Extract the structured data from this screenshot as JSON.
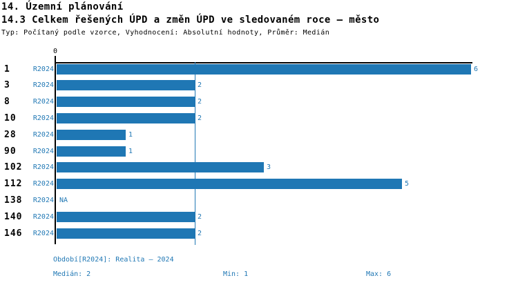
{
  "header": {
    "title": "14. Územní plánování",
    "subtitle": "14.3 Celkem řešených ÚPD a změn ÚPD ve sledovaném roce – město",
    "meta": "Typ: Počítaný podle vzorce, Vyhodnocení: Absolutní hodnoty, Průměr: Medián"
  },
  "chart_data": {
    "type": "bar",
    "orientation": "horizontal",
    "title": "14.3 Celkem řešených ÚPD a změn ÚPD ve sledovaném roce – město",
    "categories": [
      "1",
      "3",
      "8",
      "10",
      "28",
      "90",
      "102",
      "112",
      "138",
      "140",
      "146"
    ],
    "series": [
      {
        "name": "R2024",
        "values": [
          6,
          2,
          2,
          2,
          1,
          1,
          3,
          5,
          null,
          2,
          2
        ]
      }
    ],
    "value_labels": [
      "6",
      "2",
      "2",
      "2",
      "1",
      "1",
      "3",
      "5",
      "NA",
      "2",
      "2"
    ],
    "na_text": "NA",
    "xlim": [
      0,
      6
    ],
    "x_axis_origin_label": "0",
    "median_line_value": 2,
    "grid": false,
    "legend_position": "none",
    "bar_color": "#1f77b4",
    "median_line_color": "#1f77b4",
    "axis_color": "#000000"
  },
  "footer": {
    "period": "Období[R2024]: Realita – 2024",
    "median": "Medián: 2",
    "min": "Min: 1",
    "max": "Max: 6"
  },
  "colors": {
    "accent": "#1f77b4",
    "text": "#000000",
    "background": "#ffffff"
  }
}
